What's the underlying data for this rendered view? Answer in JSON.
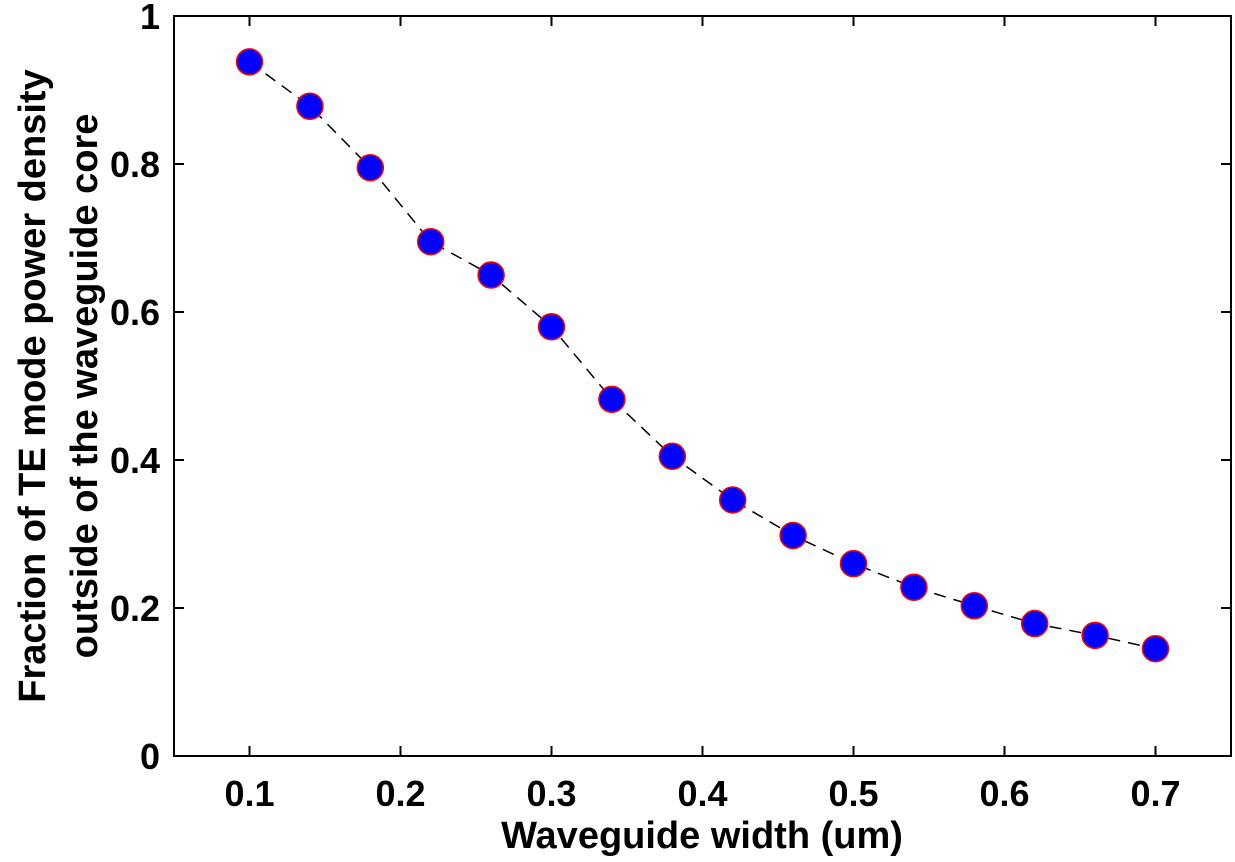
{
  "chart_data": {
    "type": "line",
    "title": "",
    "xlabel": "Waveguide width (um)",
    "ylabel_lines": [
      "Fraction of TE mode power density",
      "outside of the waveguide core"
    ],
    "xlim": [
      0.05,
      0.75
    ],
    "ylim": [
      0,
      1
    ],
    "xticks": [
      0.1,
      0.2,
      0.3,
      0.4,
      0.5,
      0.6,
      0.7
    ],
    "xtick_labels": [
      "0.1",
      "0.2",
      "0.3",
      "0.4",
      "0.5",
      "0.6",
      "0.7"
    ],
    "yticks": [
      0,
      0.2,
      0.4,
      0.6,
      0.8,
      1
    ],
    "ytick_labels": [
      "0",
      "0.2",
      "0.4",
      "0.6",
      "0.8",
      "1"
    ],
    "grid": false,
    "series": [
      {
        "x": [
          0.1,
          0.14,
          0.18,
          0.22,
          0.26,
          0.3,
          0.34,
          0.38,
          0.42,
          0.46,
          0.5,
          0.54,
          0.58,
          0.62,
          0.66,
          0.7
        ],
        "y": [
          0.938,
          0.878,
          0.795,
          0.695,
          0.65,
          0.58,
          0.482,
          0.405,
          0.346,
          0.298,
          0.26,
          0.228,
          0.203,
          0.179,
          0.163,
          0.145
        ],
        "line_style": "dashed",
        "line_color": "#000000",
        "marker": "circle",
        "marker_fill": "#0000ff",
        "marker_edge": "#ff0000"
      }
    ]
  }
}
